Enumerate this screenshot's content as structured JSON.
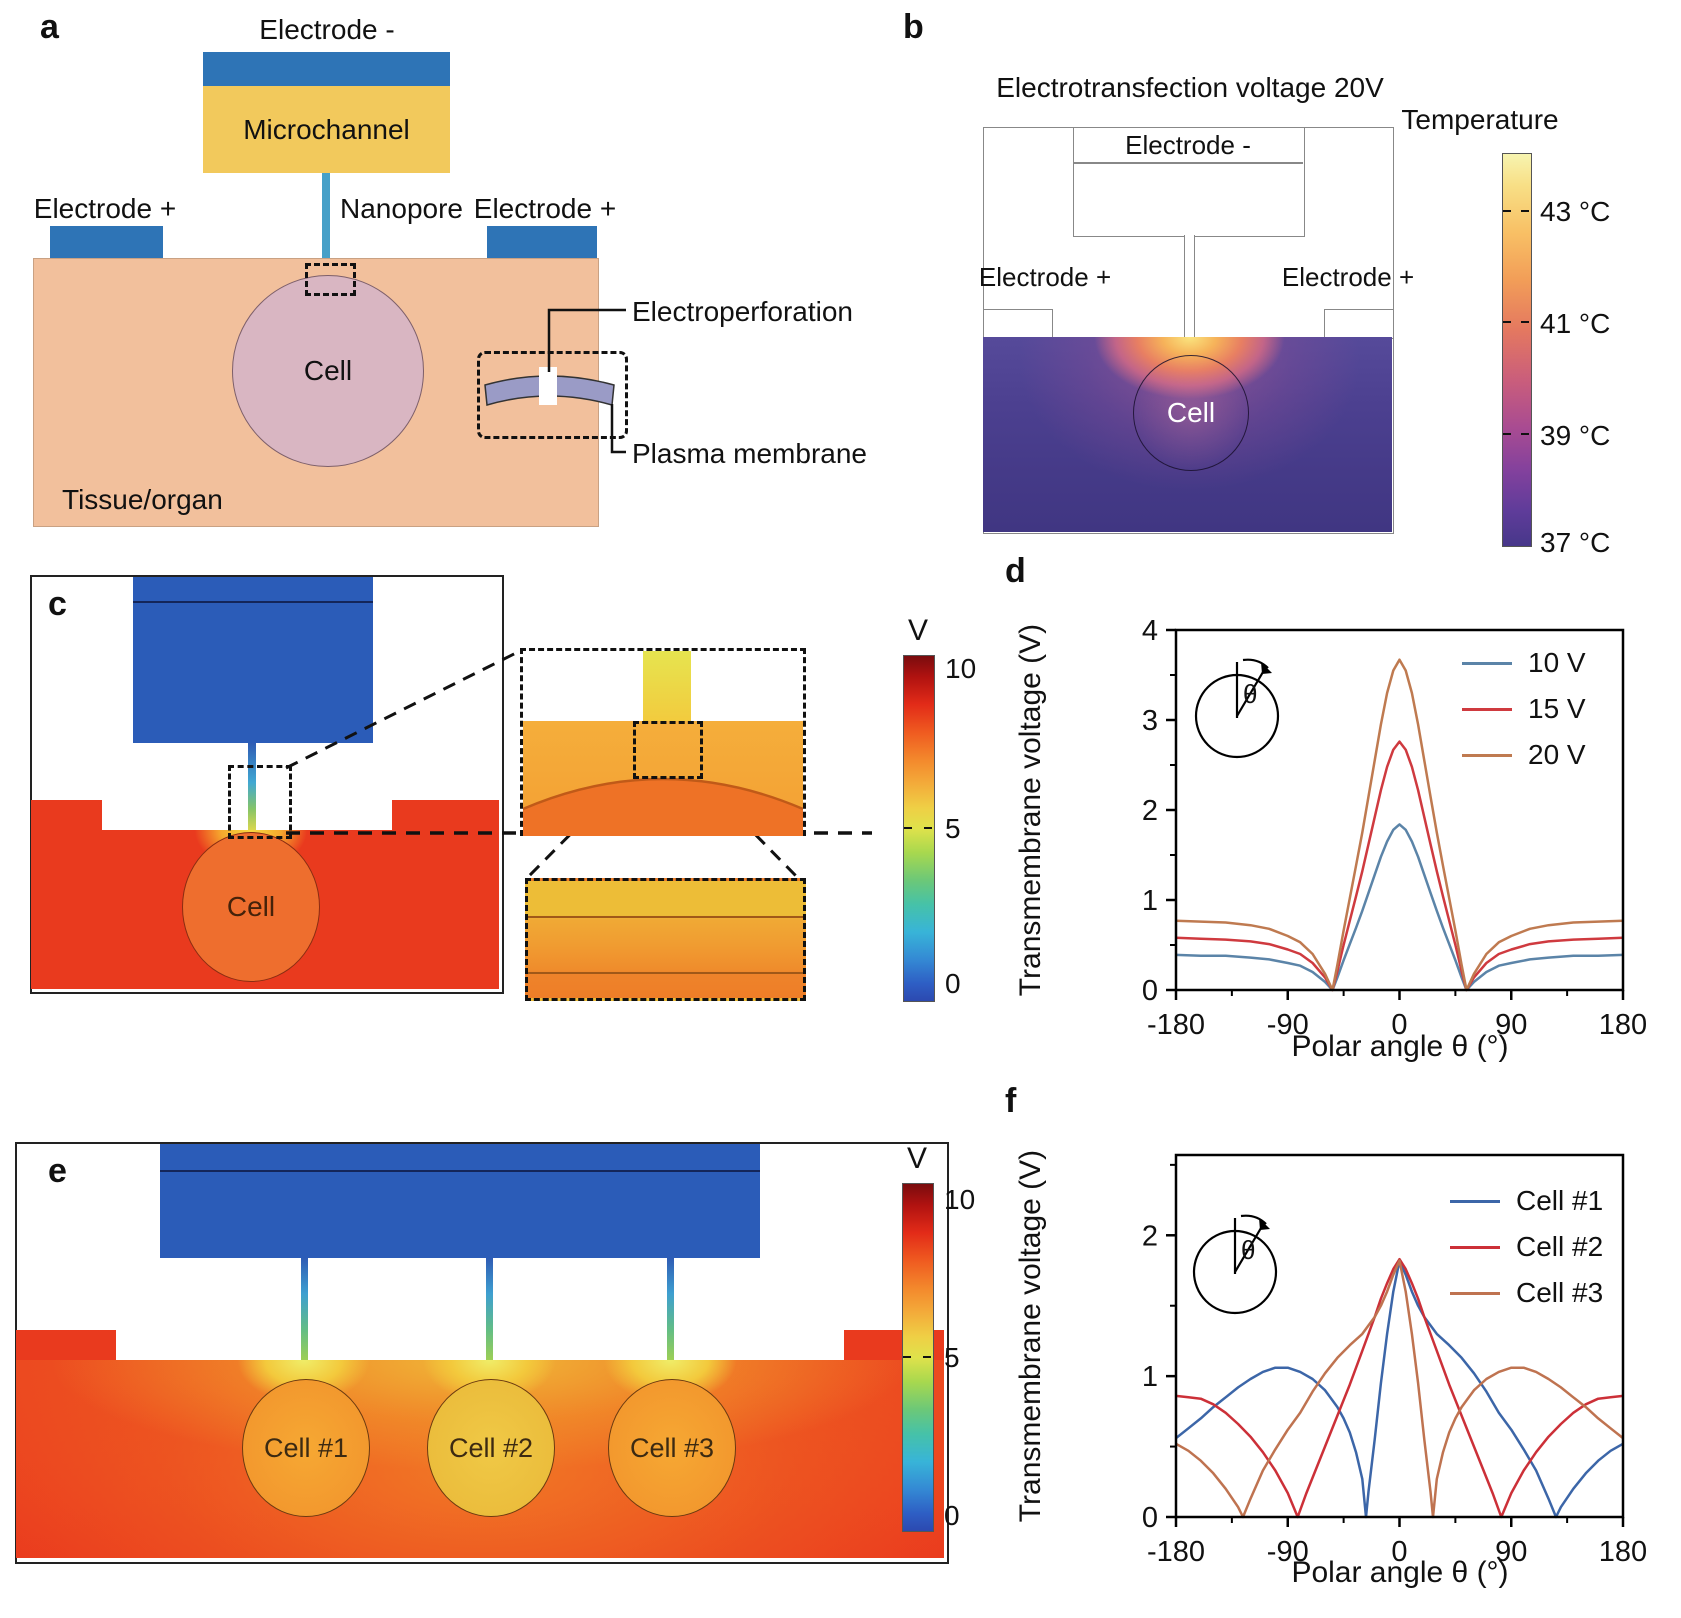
{
  "colors": {
    "electrode_blue_schematic": "#2e74b6",
    "electrode_blue_sim": "#2b5cb8",
    "microchannel_yellow": "#f2c95c",
    "nanopore_teal": "#46a0c8",
    "tissue_peach": "#f2c09c",
    "cell_pink": "#d9b6c2",
    "membrane_purple": "#9a9bc6",
    "tissue_red_sim": "#e93a1e",
    "cell_orange_sim": "#f59a2e",
    "cell_yellow_sim": "#eec043",
    "outline_gray": "#888888"
  },
  "panel_a": {
    "label": "a",
    "electrode_minus": "Electrode -",
    "microchannel": "Microchannel",
    "nanopore": "Nanopore",
    "electrode_plus_left": "Electrode +",
    "electrode_plus_right": "Electrode +",
    "cell": "Cell",
    "electroperforation": "Electroperforation",
    "plasma_membrane": "Plasma membrane",
    "tissue": "Tissue/organ"
  },
  "panel_b": {
    "label": "b",
    "title": "Electrotransfection voltage 20V",
    "electrode_minus": "Electrode -",
    "electrode_plus_left": "Electrode +",
    "electrode_plus_right": "Electrode +",
    "cell": "Cell",
    "colorbar": {
      "title": "Temperature",
      "ticks": [
        "43 °C",
        "41 °C",
        "39 °C",
        "37 °C"
      ]
    }
  },
  "panel_c": {
    "label": "c",
    "cell": "Cell",
    "colorbar": {
      "title": "V",
      "ticks": [
        "10",
        "5",
        "0"
      ]
    }
  },
  "panel_e": {
    "label": "e",
    "cells": [
      "Cell #1",
      "Cell #2",
      "Cell #3"
    ],
    "colorbar": {
      "title": "V",
      "ticks": [
        "10",
        "5",
        "0"
      ]
    }
  },
  "chart_data": [
    {
      "panel": "d",
      "type": "line",
      "title": "",
      "xlabel": "Polar angle θ (°)",
      "ylabel": "Transmembrane voltage (V)",
      "inset_theta": "θ",
      "xlim": [
        -180,
        180
      ],
      "ylim": [
        0,
        4
      ],
      "xticks": [
        -180,
        -90,
        0,
        90,
        180
      ],
      "xticks_minor": [
        -135,
        -45,
        45,
        135
      ],
      "yticks": [
        0,
        1,
        2,
        3,
        4
      ],
      "yticks_minor": [
        0.5,
        1.5,
        2.5,
        3.5
      ],
      "grid": false,
      "legend_position": "top-right",
      "series": [
        {
          "name": "10 V",
          "color": "#5b84a8",
          "x": [
            -180,
            -160,
            -140,
            -120,
            -105,
            -90,
            -80,
            -70,
            -60,
            -54,
            -50,
            -45,
            -40,
            -35,
            -30,
            -25,
            -20,
            -15,
            -10,
            -5,
            0,
            5,
            10,
            15,
            20,
            25,
            30,
            35,
            40,
            45,
            50,
            54,
            60,
            70,
            80,
            90,
            105,
            120,
            140,
            160,
            180
          ],
          "y": [
            0.39,
            0.38,
            0.38,
            0.36,
            0.34,
            0.3,
            0.27,
            0.2,
            0.09,
            0,
            0.14,
            0.33,
            0.51,
            0.69,
            0.88,
            1.08,
            1.28,
            1.48,
            1.65,
            1.78,
            1.84,
            1.78,
            1.65,
            1.48,
            1.28,
            1.08,
            0.88,
            0.69,
            0.51,
            0.33,
            0.14,
            0,
            0.09,
            0.2,
            0.27,
            0.3,
            0.34,
            0.36,
            0.38,
            0.38,
            0.39
          ]
        },
        {
          "name": "15 V",
          "color": "#cf3a3f",
          "x": [
            -180,
            -160,
            -140,
            -120,
            -105,
            -90,
            -80,
            -70,
            -60,
            -54,
            -50,
            -45,
            -40,
            -35,
            -30,
            -25,
            -20,
            -15,
            -10,
            -5,
            0,
            5,
            10,
            15,
            20,
            25,
            30,
            35,
            40,
            45,
            50,
            54,
            60,
            70,
            80,
            90,
            105,
            120,
            140,
            160,
            180
          ],
          "y": [
            0.58,
            0.57,
            0.56,
            0.54,
            0.51,
            0.45,
            0.4,
            0.3,
            0.14,
            0,
            0.21,
            0.5,
            0.77,
            1.04,
            1.32,
            1.62,
            1.92,
            2.22,
            2.48,
            2.67,
            2.76,
            2.67,
            2.48,
            2.22,
            1.92,
            1.62,
            1.32,
            1.04,
            0.77,
            0.5,
            0.21,
            0,
            0.14,
            0.3,
            0.4,
            0.45,
            0.51,
            0.54,
            0.56,
            0.57,
            0.58
          ]
        },
        {
          "name": "20 V",
          "color": "#bf7a50",
          "x": [
            -180,
            -160,
            -140,
            -120,
            -105,
            -90,
            -80,
            -70,
            -60,
            -54,
            -50,
            -45,
            -40,
            -35,
            -30,
            -25,
            -20,
            -15,
            -10,
            -5,
            0,
            5,
            10,
            15,
            20,
            25,
            30,
            35,
            40,
            45,
            50,
            54,
            60,
            70,
            80,
            90,
            105,
            120,
            140,
            160,
            180
          ],
          "y": [
            0.77,
            0.76,
            0.75,
            0.72,
            0.68,
            0.6,
            0.53,
            0.4,
            0.18,
            0,
            0.28,
            0.66,
            1.02,
            1.38,
            1.75,
            2.15,
            2.55,
            2.95,
            3.3,
            3.55,
            3.67,
            3.55,
            3.3,
            2.95,
            2.55,
            2.15,
            1.75,
            1.38,
            1.02,
            0.66,
            0.28,
            0,
            0.18,
            0.4,
            0.53,
            0.6,
            0.68,
            0.72,
            0.75,
            0.76,
            0.77
          ]
        }
      ]
    },
    {
      "panel": "f",
      "type": "line",
      "title": "",
      "xlabel": "Polar angle θ (°)",
      "ylabel": "Transmembrane voltage (V)",
      "inset_theta": "θ",
      "xlim": [
        -180,
        180
      ],
      "ylim": [
        0,
        2.57
      ],
      "xticks": [
        -180,
        -90,
        0,
        90,
        180
      ],
      "xticks_minor": [
        -135,
        -45,
        45,
        135
      ],
      "yticks": [
        0,
        1,
        2
      ],
      "yticks_minor": [
        0.5,
        1.5,
        2.5
      ],
      "grid": false,
      "legend_position": "top-right",
      "series": [
        {
          "name": "Cell #1",
          "color": "#3c66a8",
          "x": [
            -180,
            -170,
            -160,
            -150,
            -140,
            -130,
            -120,
            -110,
            -100,
            -90,
            -80,
            -70,
            -60,
            -50,
            -45,
            -40,
            -35,
            -30,
            -27,
            -25,
            -20,
            -15,
            -10,
            -5,
            0,
            5,
            10,
            15,
            20,
            25,
            30,
            40,
            50,
            60,
            70,
            80,
            90,
            100,
            110,
            120,
            126,
            130,
            140,
            150,
            160,
            170,
            180
          ],
          "y": [
            0.56,
            0.63,
            0.7,
            0.78,
            0.85,
            0.92,
            0.98,
            1.03,
            1.06,
            1.06,
            1.03,
            0.98,
            0.9,
            0.78,
            0.7,
            0.6,
            0.46,
            0.27,
            0,
            0.18,
            0.55,
            0.95,
            1.3,
            1.6,
            1.82,
            1.72,
            1.6,
            1.5,
            1.42,
            1.36,
            1.3,
            1.22,
            1.13,
            1.02,
            0.89,
            0.74,
            0.62,
            0.48,
            0.33,
            0.13,
            0,
            0.07,
            0.2,
            0.31,
            0.4,
            0.47,
            0.52
          ]
        },
        {
          "name": "Cell #2",
          "color": "#cc3038",
          "x": [
            -180,
            -170,
            -160,
            -150,
            -140,
            -130,
            -120,
            -110,
            -100,
            -90,
            -82,
            -75,
            -70,
            -60,
            -50,
            -40,
            -30,
            -20,
            -15,
            -10,
            -5,
            0,
            5,
            10,
            15,
            20,
            30,
            40,
            50,
            60,
            70,
            75,
            82,
            90,
            100,
            110,
            120,
            130,
            140,
            150,
            160,
            170,
            180
          ],
          "y": [
            0.86,
            0.85,
            0.84,
            0.8,
            0.74,
            0.66,
            0.57,
            0.46,
            0.33,
            0.17,
            0,
            0.17,
            0.28,
            0.5,
            0.72,
            0.94,
            1.18,
            1.42,
            1.55,
            1.66,
            1.76,
            1.83,
            1.76,
            1.66,
            1.55,
            1.42,
            1.18,
            0.94,
            0.72,
            0.5,
            0.28,
            0.17,
            0,
            0.17,
            0.33,
            0.46,
            0.57,
            0.66,
            0.74,
            0.8,
            0.84,
            0.85,
            0.86
          ]
        },
        {
          "name": "Cell #3",
          "color": "#bf7350",
          "x": [
            -180,
            -170,
            -160,
            -150,
            -140,
            -130,
            -126,
            -120,
            -110,
            -100,
            -90,
            -80,
            -70,
            -60,
            -50,
            -40,
            -30,
            -25,
            -20,
            -15,
            -10,
            -5,
            0,
            5,
            10,
            15,
            20,
            25,
            27,
            30,
            35,
            40,
            45,
            50,
            60,
            70,
            80,
            90,
            100,
            110,
            120,
            130,
            140,
            150,
            160,
            170,
            180
          ],
          "y": [
            0.52,
            0.47,
            0.4,
            0.31,
            0.2,
            0.07,
            0,
            0.13,
            0.33,
            0.48,
            0.62,
            0.74,
            0.89,
            1.02,
            1.13,
            1.22,
            1.3,
            1.36,
            1.42,
            1.5,
            1.6,
            1.72,
            1.82,
            1.6,
            1.3,
            0.95,
            0.55,
            0.18,
            0,
            0.27,
            0.46,
            0.6,
            0.7,
            0.78,
            0.9,
            0.98,
            1.03,
            1.06,
            1.06,
            1.03,
            0.98,
            0.92,
            0.85,
            0.78,
            0.7,
            0.63,
            0.56
          ]
        }
      ]
    }
  ]
}
